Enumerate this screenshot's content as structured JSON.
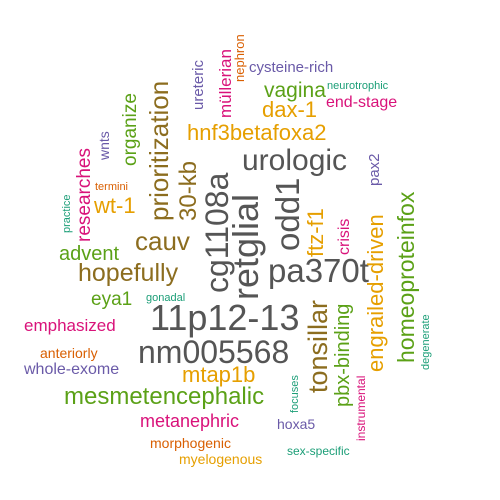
{
  "colors": {
    "gray": "#555555",
    "orange": "#e69f00",
    "brown": "#8c6d1f",
    "green": "#5ba117",
    "pink": "#d9127a",
    "purple": "#6a5aa8",
    "teal": "#1b9e77",
    "dark_orange": "#d95f02"
  },
  "words": [
    {
      "text": "11p12-13",
      "color": "gray"
    },
    {
      "text": "nm005568",
      "color": "gray"
    },
    {
      "text": "pa370t",
      "color": "gray"
    },
    {
      "text": "urologic",
      "color": "gray"
    },
    {
      "text": "cg1108a",
      "color": "gray"
    },
    {
      "text": "retglial",
      "color": "gray"
    },
    {
      "text": "odd1",
      "color": "gray"
    },
    {
      "text": "hopefully",
      "color": "brown"
    },
    {
      "text": "cauv",
      "color": "brown"
    },
    {
      "text": "prioritization",
      "color": "brown"
    },
    {
      "text": "30-kb",
      "color": "brown"
    },
    {
      "text": "tonsillar",
      "color": "brown"
    },
    {
      "text": "hnf3betafoxa2",
      "color": "orange"
    },
    {
      "text": "mtap1b",
      "color": "orange"
    },
    {
      "text": "engrailed-driven",
      "color": "orange"
    },
    {
      "text": "dax-1",
      "color": "orange"
    },
    {
      "text": "ftz-f1",
      "color": "orange"
    },
    {
      "text": "wt-1",
      "color": "orange"
    },
    {
      "text": "myelogenous",
      "color": "orange"
    },
    {
      "text": "mesmetencephalic",
      "color": "green"
    },
    {
      "text": "homeoproteinfox",
      "color": "green"
    },
    {
      "text": "pbx-binding",
      "color": "green"
    },
    {
      "text": "vagina",
      "color": "green"
    },
    {
      "text": "advent",
      "color": "green"
    },
    {
      "text": "organize",
      "color": "green"
    },
    {
      "text": "eya1",
      "color": "green"
    },
    {
      "text": "emphasized",
      "color": "pink"
    },
    {
      "text": "metanephric",
      "color": "pink"
    },
    {
      "text": "researches",
      "color": "pink"
    },
    {
      "text": "crisis",
      "color": "pink"
    },
    {
      "text": "end-stage",
      "color": "pink"
    },
    {
      "text": "müllerian",
      "color": "pink"
    },
    {
      "text": "instrumental",
      "color": "pink"
    },
    {
      "text": "whole-exome",
      "color": "purple"
    },
    {
      "text": "cysteine-rich",
      "color": "purple"
    },
    {
      "text": "hoxa5",
      "color": "purple"
    },
    {
      "text": "pax2",
      "color": "purple"
    },
    {
      "text": "ureteric",
      "color": "purple"
    },
    {
      "text": "wnts",
      "color": "purple"
    },
    {
      "text": "neurotrophic",
      "color": "teal"
    },
    {
      "text": "gonadal",
      "color": "teal"
    },
    {
      "text": "sex-specific",
      "color": "teal"
    },
    {
      "text": "practice",
      "color": "teal"
    },
    {
      "text": "focuses",
      "color": "teal"
    },
    {
      "text": "degenerate",
      "color": "teal"
    },
    {
      "text": "anteriorly",
      "color": "dark_orange"
    },
    {
      "text": "morphogenic",
      "color": "dark_orange"
    },
    {
      "text": "termini",
      "color": "dark_orange"
    },
    {
      "text": "nephron",
      "color": "dark_orange"
    }
  ]
}
